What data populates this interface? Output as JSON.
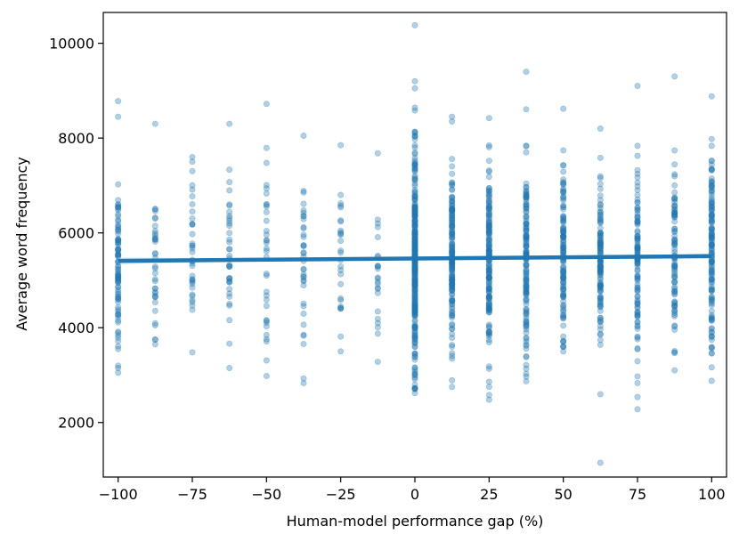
{
  "chart_data": {
    "type": "scatter",
    "title": "",
    "xlabel": "Human-model performance gap (%)",
    "ylabel": "Average word frequency",
    "xlim": [
      -105,
      105
    ],
    "ylim": [
      850,
      10650
    ],
    "xticks": [
      -100,
      -75,
      -50,
      -25,
      0,
      25,
      50,
      75,
      100
    ],
    "xtick_labels": [
      "−100",
      "−75",
      "−50",
      "−25",
      "0",
      "25",
      "50",
      "75",
      "100"
    ],
    "yticks": [
      2000,
      4000,
      6000,
      8000,
      10000
    ],
    "ytick_labels": [
      "2000",
      "4000",
      "6000",
      "8000",
      "10000"
    ],
    "grid": false,
    "legend": "none",
    "colors": {
      "points": "#1f77b4",
      "regression_line": "#1f77b4",
      "confidence_band": "#9ec3e1",
      "axes": "#000000"
    },
    "point_alpha": 0.35,
    "regression": {
      "x": [
        -100,
        100
      ],
      "y": [
        5410,
        5510
      ]
    },
    "columns": [
      {
        "x": -100,
        "n": 90,
        "mean": 5300,
        "sd": 850,
        "min": 3050,
        "max": 8780,
        "outliers": [
          8780,
          8450,
          3050,
          3200
        ]
      },
      {
        "x": -87.5,
        "n": 35,
        "mean": 5300,
        "sd": 800,
        "min": 3650,
        "max": 8300,
        "outliers": [
          8300,
          3650
        ]
      },
      {
        "x": -75,
        "n": 35,
        "mean": 5500,
        "sd": 850,
        "min": 3480,
        "max": 7600,
        "outliers": [
          7600,
          3480
        ]
      },
      {
        "x": -62.5,
        "n": 35,
        "mean": 5400,
        "sd": 1000,
        "min": 3150,
        "max": 8300,
        "outliers": [
          8300,
          3150
        ]
      },
      {
        "x": -50,
        "n": 32,
        "mean": 5400,
        "sd": 1100,
        "min": 2980,
        "max": 8720,
        "outliers": [
          8720,
          2980
        ]
      },
      {
        "x": -37.5,
        "n": 35,
        "mean": 5300,
        "sd": 1050,
        "min": 2830,
        "max": 8050,
        "outliers": [
          8050,
          2830
        ]
      },
      {
        "x": -25,
        "n": 25,
        "mean": 5500,
        "sd": 1000,
        "min": 3500,
        "max": 7850,
        "outliers": [
          7850,
          3500
        ]
      },
      {
        "x": -12.5,
        "n": 22,
        "mean": 5100,
        "sd": 1000,
        "min": 3280,
        "max": 7680,
        "outliers": [
          7680,
          3280
        ]
      },
      {
        "x": 0,
        "n": 320,
        "mean": 5450,
        "sd": 1150,
        "min": 2620,
        "max": 10380,
        "outliers": [
          10380,
          9200,
          9050,
          2620,
          2700
        ]
      },
      {
        "x": 12.5,
        "n": 160,
        "mean": 5450,
        "sd": 1000,
        "min": 2750,
        "max": 8450,
        "outliers": [
          8450,
          2750
        ]
      },
      {
        "x": 25,
        "n": 160,
        "mean": 5400,
        "sd": 1000,
        "min": 2480,
        "max": 8420,
        "outliers": [
          8420,
          2480
        ]
      },
      {
        "x": 37.5,
        "n": 140,
        "mean": 5450,
        "sd": 1000,
        "min": 2870,
        "max": 9400,
        "outliers": [
          9400,
          2870
        ]
      },
      {
        "x": 50,
        "n": 120,
        "mean": 5400,
        "sd": 1000,
        "min": 3500,
        "max": 8620,
        "outliers": [
          8620,
          3500
        ]
      },
      {
        "x": 62.5,
        "n": 120,
        "mean": 5450,
        "sd": 1000,
        "min": 1150,
        "max": 8200,
        "outliers": [
          8200,
          1150
        ]
      },
      {
        "x": 75,
        "n": 110,
        "mean": 5450,
        "sd": 1000,
        "min": 2280,
        "max": 9100,
        "outliers": [
          9100,
          2280
        ]
      },
      {
        "x": 87.5,
        "n": 90,
        "mean": 5400,
        "sd": 1000,
        "min": 3100,
        "max": 9300,
        "outliers": [
          9300,
          3100
        ]
      },
      {
        "x": 100,
        "n": 140,
        "mean": 5500,
        "sd": 1050,
        "min": 2880,
        "max": 8880,
        "outliers": [
          8880,
          2880
        ]
      }
    ]
  }
}
